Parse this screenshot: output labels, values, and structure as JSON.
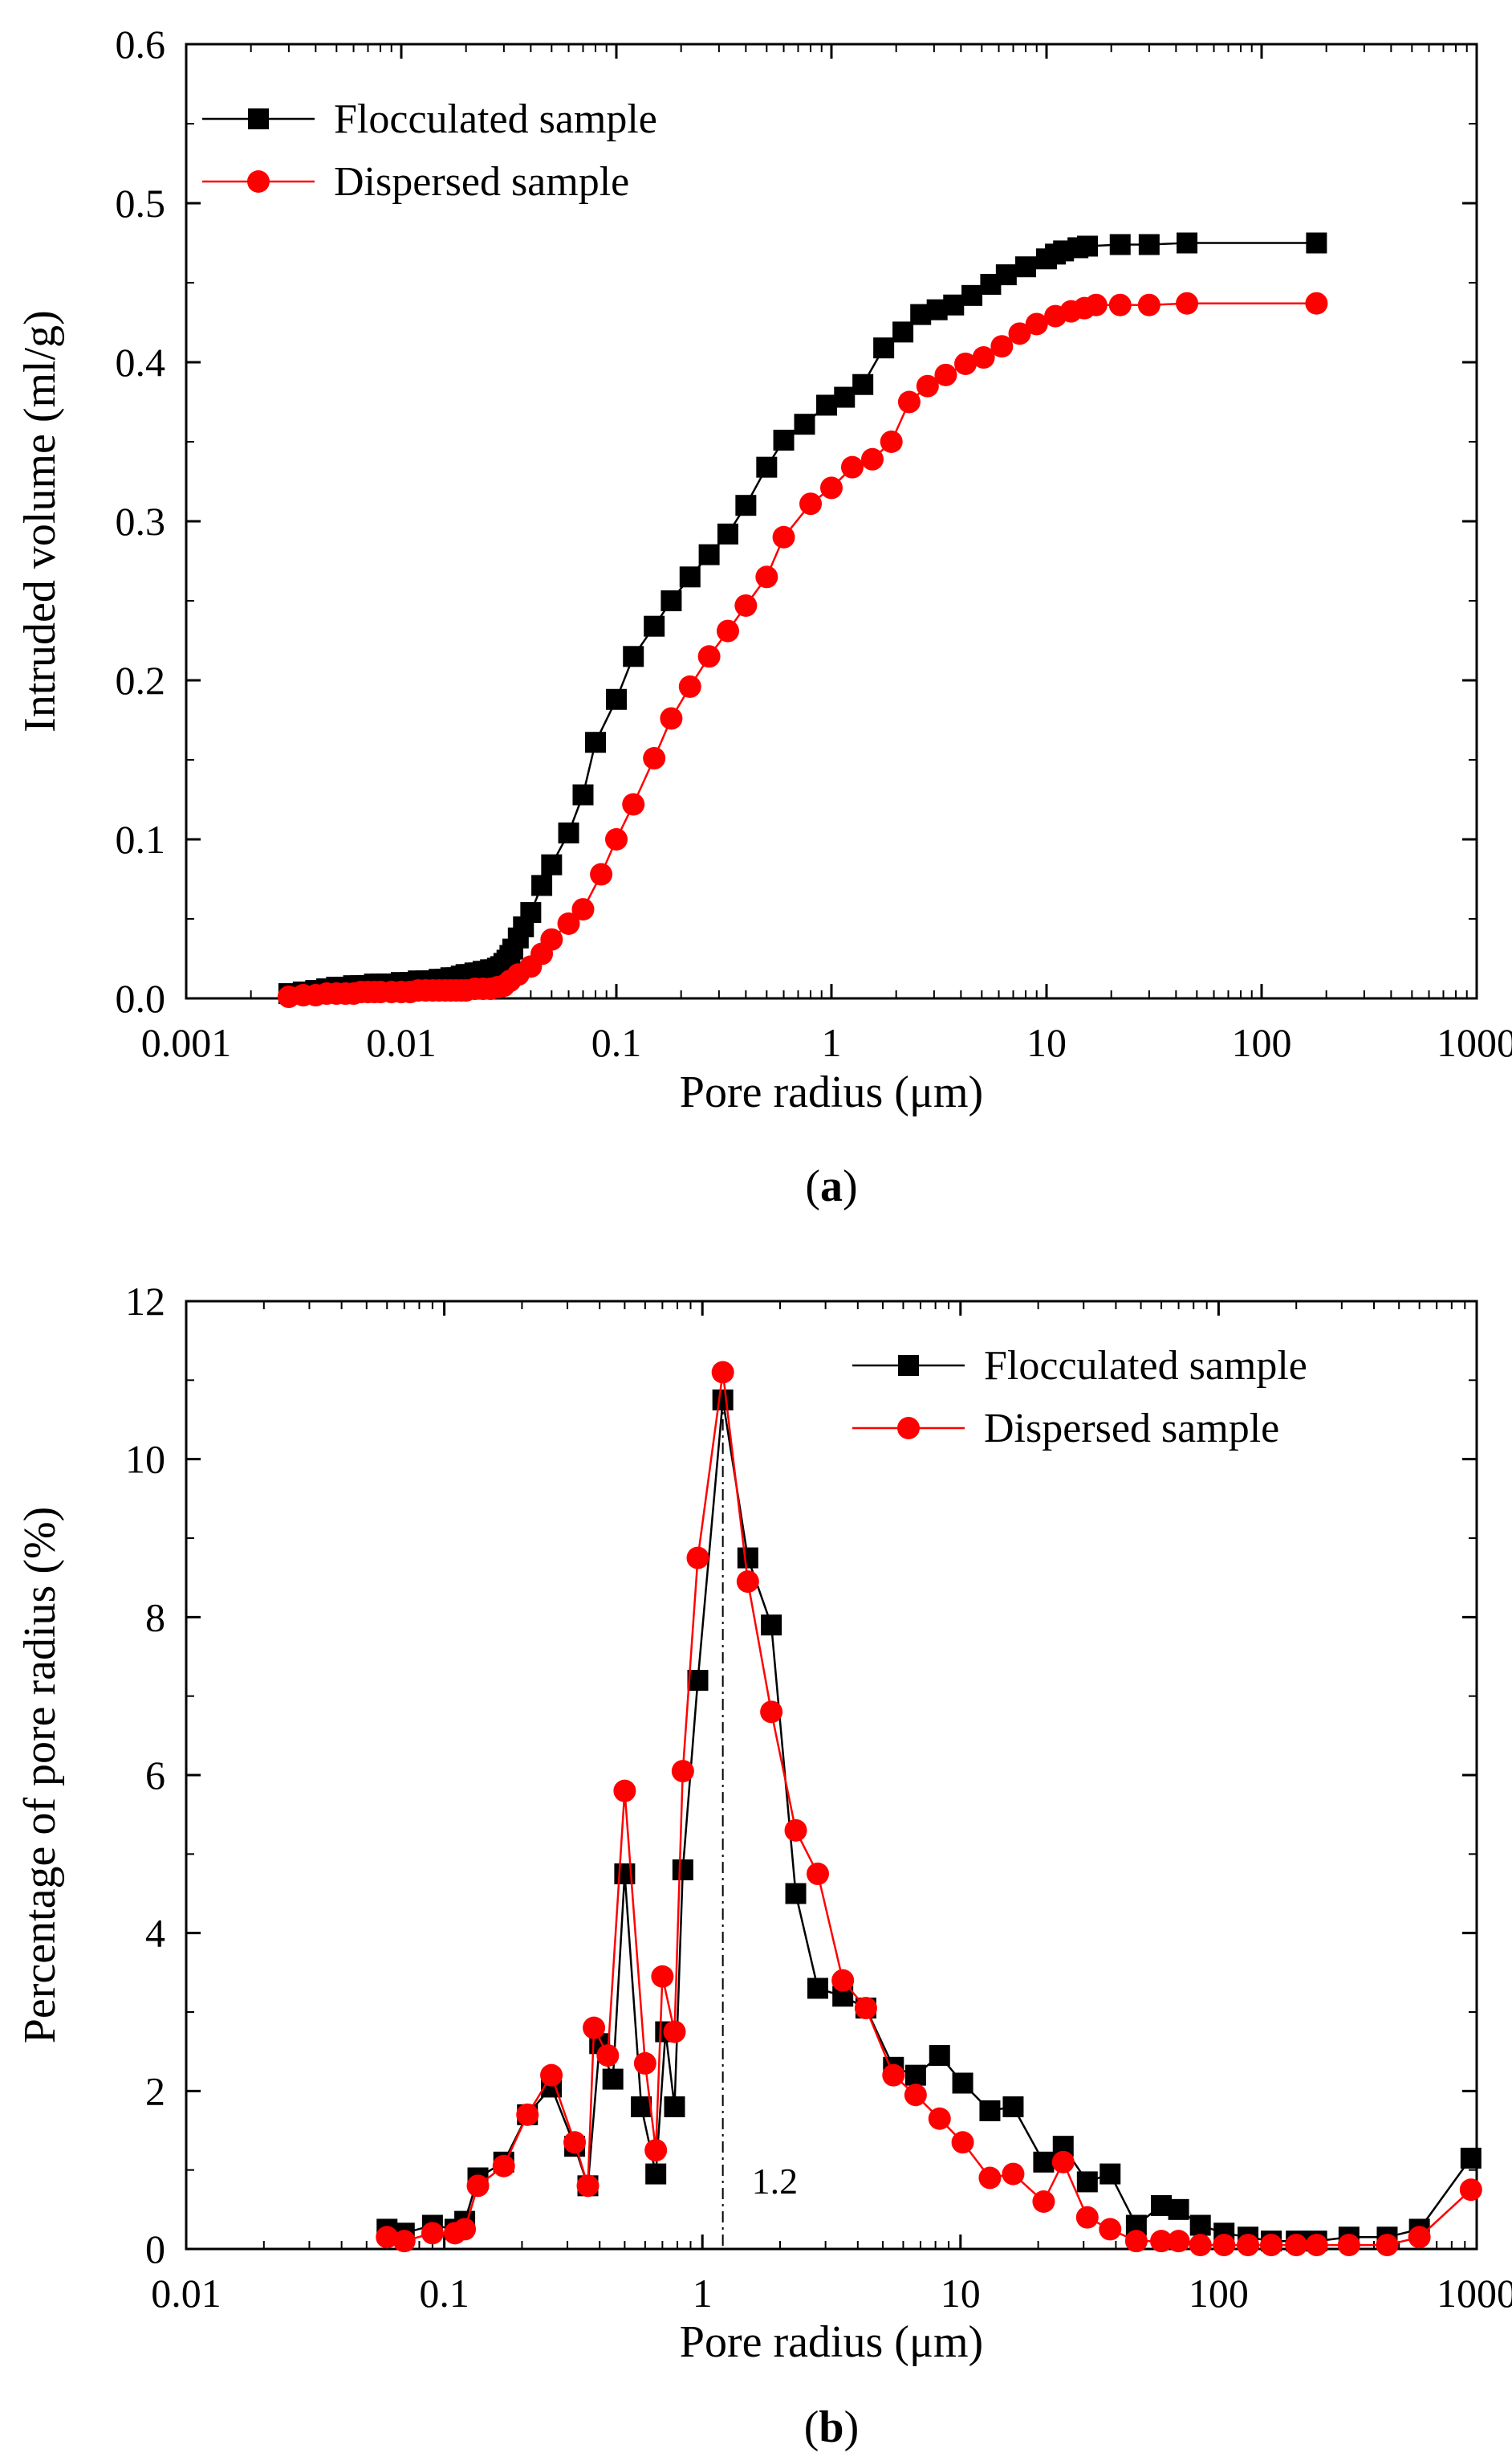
{
  "chart_data": [
    {
      "type": "line",
      "panel": "(a)",
      "panel_label": {
        "open": "(",
        "letter": "a",
        "close": ")"
      },
      "title": "",
      "xlabel": "Pore radius (μm)",
      "ylabel": "Intruded volume (ml/g)",
      "xscale": "log",
      "xlim": [
        0.001,
        1000
      ],
      "ylim": [
        0,
        0.6
      ],
      "xticks": [
        0.001,
        0.01,
        0.1,
        1,
        10,
        100,
        1000
      ],
      "xtick_labels": [
        "0.001",
        "0.01",
        "0.1",
        "1",
        "10",
        "100",
        "1000"
      ],
      "yticks": [
        0,
        0.1,
        0.2,
        0.3,
        0.4,
        0.5,
        0.6
      ],
      "ytick_labels": [
        "0.0",
        "0.1",
        "0.2",
        "0.3",
        "0.4",
        "0.5",
        "0.6"
      ],
      "legend_position": "top-left",
      "series": [
        {
          "name": "Flocculated sample",
          "color": "#000000",
          "marker": "square",
          "x": [
            0.003,
            0.0035,
            0.004,
            0.0045,
            0.005,
            0.0055,
            0.006,
            0.0065,
            0.007,
            0.0075,
            0.008,
            0.0085,
            0.009,
            0.01,
            0.011,
            0.012,
            0.013,
            0.014,
            0.015,
            0.016,
            0.017,
            0.018,
            0.019,
            0.02,
            0.021,
            0.022,
            0.023,
            0.024,
            0.025,
            0.026,
            0.027,
            0.028,
            0.029,
            0.03,
            0.031,
            0.032,
            0.033,
            0.035,
            0.037,
            0.04,
            0.045,
            0.05,
            0.06,
            0.07,
            0.08,
            0.1,
            0.12,
            0.15,
            0.18,
            0.22,
            0.27,
            0.33,
            0.4,
            0.5,
            0.6,
            0.75,
            0.95,
            1.15,
            1.4,
            1.75,
            2.15,
            2.6,
            3.1,
            3.7,
            4.5,
            5.5,
            6.5,
            8.0,
            10.0,
            11.0,
            12.0,
            14.0,
            15.5,
            22.0,
            30.0,
            45.0,
            180.0
          ],
          "y": [
            0.003,
            0.004,
            0.005,
            0.006,
            0.007,
            0.007,
            0.008,
            0.008,
            0.008,
            0.009,
            0.009,
            0.009,
            0.009,
            0.01,
            0.01,
            0.011,
            0.011,
            0.011,
            0.012,
            0.012,
            0.013,
            0.013,
            0.014,
            0.015,
            0.015,
            0.016,
            0.016,
            0.017,
            0.017,
            0.018,
            0.018,
            0.019,
            0.02,
            0.022,
            0.024,
            0.027,
            0.031,
            0.038,
            0.045,
            0.054,
            0.071,
            0.084,
            0.104,
            0.128,
            0.161,
            0.188,
            0.215,
            0.234,
            0.25,
            0.265,
            0.279,
            0.292,
            0.31,
            0.334,
            0.351,
            0.361,
            0.373,
            0.378,
            0.386,
            0.409,
            0.419,
            0.43,
            0.433,
            0.436,
            0.442,
            0.449,
            0.455,
            0.46,
            0.465,
            0.468,
            0.47,
            0.472,
            0.473,
            0.474,
            0.474,
            0.475,
            0.475
          ]
        },
        {
          "name": "Dispersed sample",
          "color": "#ff0000",
          "marker": "circle",
          "x": [
            0.003,
            0.0035,
            0.004,
            0.0045,
            0.005,
            0.0055,
            0.006,
            0.0065,
            0.007,
            0.0075,
            0.008,
            0.009,
            0.01,
            0.011,
            0.012,
            0.013,
            0.014,
            0.015,
            0.016,
            0.017,
            0.018,
            0.019,
            0.02,
            0.022,
            0.024,
            0.026,
            0.028,
            0.03,
            0.032,
            0.035,
            0.04,
            0.045,
            0.05,
            0.06,
            0.07,
            0.085,
            0.1,
            0.12,
            0.15,
            0.18,
            0.22,
            0.27,
            0.33,
            0.4,
            0.5,
            0.6,
            0.8,
            1.0,
            1.25,
            1.55,
            1.9,
            2.3,
            2.8,
            3.4,
            4.2,
            5.1,
            6.2,
            7.5,
            9.0,
            11.0,
            13.0,
            15.0,
            17.0,
            22.0,
            30.0,
            45.0,
            180.0
          ],
          "y": [
            0.001,
            0.002,
            0.002,
            0.003,
            0.003,
            0.003,
            0.003,
            0.004,
            0.004,
            0.004,
            0.004,
            0.004,
            0.004,
            0.004,
            0.005,
            0.005,
            0.005,
            0.005,
            0.005,
            0.005,
            0.005,
            0.005,
            0.005,
            0.006,
            0.006,
            0.006,
            0.007,
            0.008,
            0.011,
            0.015,
            0.02,
            0.028,
            0.037,
            0.047,
            0.056,
            0.078,
            0.1,
            0.122,
            0.151,
            0.176,
            0.196,
            0.215,
            0.231,
            0.247,
            0.265,
            0.29,
            0.311,
            0.321,
            0.334,
            0.339,
            0.35,
            0.375,
            0.385,
            0.392,
            0.399,
            0.403,
            0.41,
            0.418,
            0.424,
            0.429,
            0.432,
            0.434,
            0.436,
            0.436,
            0.436,
            0.437,
            0.437
          ]
        }
      ]
    },
    {
      "type": "line",
      "panel": "(b)",
      "panel_label": {
        "open": "(",
        "letter": "b",
        "close": ")"
      },
      "title": "",
      "xlabel": "Pore radius (μm)",
      "ylabel": "Percentage of pore radius (%)",
      "xscale": "log",
      "xlim": [
        0.01,
        1000
      ],
      "ylim": [
        0,
        12
      ],
      "xticks": [
        0.01,
        0.1,
        1,
        10,
        100,
        1000
      ],
      "xtick_labels": [
        "0.01",
        "0.1",
        "1",
        "10",
        "100",
        "1000"
      ],
      "yticks": [
        0,
        2,
        4,
        6,
        8,
        10,
        12
      ],
      "ytick_labels": [
        "0",
        "2",
        "4",
        "6",
        "8",
        "10",
        "12"
      ],
      "legend_position": "top-right",
      "annotation": {
        "text": "1.2",
        "x": 1.2,
        "style": "dash-dot vertical line"
      },
      "series": [
        {
          "name": "Flocculated sample",
          "color": "#000000",
          "marker": "square",
          "x": [
            0.06,
            0.07,
            0.09,
            0.11,
            0.12,
            0.135,
            0.17,
            0.21,
            0.26,
            0.32,
            0.36,
            0.4,
            0.45,
            0.5,
            0.58,
            0.66,
            0.72,
            0.78,
            0.84,
            0.96,
            1.2,
            1.5,
            1.85,
            2.3,
            2.8,
            3.5,
            4.3,
            5.5,
            6.7,
            8.3,
            10.2,
            13.0,
            16.0,
            21.0,
            25.0,
            31.0,
            38.0,
            48.0,
            60.0,
            70.0,
            85.0,
            105.0,
            130.0,
            160.0,
            200.0,
            240.0,
            320.0,
            450.0,
            600.0,
            950.0
          ],
          "y": [
            0.25,
            0.2,
            0.3,
            0.25,
            0.35,
            0.9,
            1.1,
            1.7,
            2.05,
            1.3,
            0.8,
            2.6,
            2.15,
            4.75,
            1.8,
            0.95,
            2.75,
            1.8,
            4.8,
            7.2,
            10.75,
            8.75,
            7.9,
            4.5,
            3.3,
            3.2,
            3.05,
            2.3,
            2.2,
            2.45,
            2.1,
            1.75,
            1.8,
            1.1,
            1.3,
            0.85,
            0.95,
            0.3,
            0.55,
            0.5,
            0.3,
            0.2,
            0.15,
            0.1,
            0.1,
            0.1,
            0.15,
            0.15,
            0.25,
            1.15
          ]
        },
        {
          "name": "Dispersed sample",
          "color": "#ff0000",
          "marker": "circle",
          "x": [
            0.06,
            0.07,
            0.09,
            0.11,
            0.12,
            0.135,
            0.17,
            0.21,
            0.26,
            0.32,
            0.36,
            0.38,
            0.43,
            0.5,
            0.6,
            0.66,
            0.7,
            0.78,
            0.84,
            0.96,
            1.2,
            1.5,
            1.85,
            2.3,
            2.8,
            3.5,
            4.3,
            5.5,
            6.7,
            8.3,
            10.2,
            13.0,
            16.0,
            21.0,
            25.0,
            31.0,
            38.0,
            48.0,
            60.0,
            70.0,
            85.0,
            105.0,
            130.0,
            160.0,
            200.0,
            240.0,
            320.0,
            450.0,
            600.0,
            950.0
          ],
          "y": [
            0.15,
            0.1,
            0.2,
            0.2,
            0.25,
            0.8,
            1.05,
            1.7,
            2.2,
            1.35,
            0.8,
            2.8,
            2.45,
            5.8,
            2.35,
            1.25,
            3.45,
            2.75,
            6.05,
            8.75,
            11.1,
            8.45,
            6.8,
            5.3,
            4.75,
            3.4,
            3.05,
            2.2,
            1.95,
            1.65,
            1.35,
            0.9,
            0.95,
            0.6,
            1.1,
            0.4,
            0.25,
            0.1,
            0.1,
            0.1,
            0.05,
            0.05,
            0.05,
            0.05,
            0.05,
            0.05,
            0.05,
            0.05,
            0.15,
            0.75
          ]
        }
      ]
    }
  ]
}
